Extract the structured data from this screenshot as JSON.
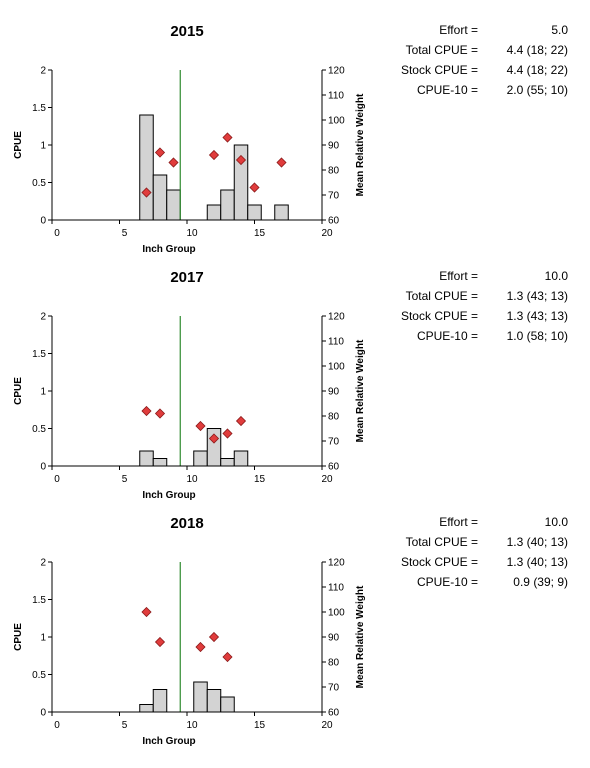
{
  "chart_data": [
    {
      "type": "bar",
      "title": "2015",
      "xlabel": "Inch Group",
      "ylabel": "CPUE",
      "y2label": "Mean Relative Weight",
      "xlim": [
        0,
        20
      ],
      "ylim": [
        0,
        2
      ],
      "y2lim": [
        60,
        120
      ],
      "xticks": [
        "0",
        "5",
        "10",
        "15",
        "20"
      ],
      "yticks": [
        "0",
        "0.5",
        "1",
        "1.5",
        "2"
      ],
      "y2ticks": [
        "60",
        "70",
        "80",
        "90",
        "100",
        "110",
        "120"
      ],
      "reference_line_x": 9.5,
      "bars": {
        "x": [
          7,
          8,
          9,
          12,
          13,
          14,
          15,
          17
        ],
        "values": [
          1.4,
          0.6,
          0.4,
          0.2,
          0.4,
          1.0,
          0.2,
          0.2
        ]
      },
      "weights": {
        "x": [
          7,
          8,
          9,
          12,
          13,
          14,
          15,
          17
        ],
        "values": [
          71,
          87,
          83,
          86,
          93,
          84,
          73,
          83
        ]
      },
      "stats": [
        {
          "label": "Effort =",
          "value": "5.0"
        },
        {
          "label": "Total CPUE =",
          "value": "4.4 (18; 22)"
        },
        {
          "label": "Stock CPUE =",
          "value": "4.4 (18; 22)"
        },
        {
          "label": "CPUE-10 =",
          "value": "2.0 (55; 10)"
        }
      ]
    },
    {
      "type": "bar",
      "title": "2017",
      "xlabel": "Inch Group",
      "ylabel": "CPUE",
      "y2label": "Mean Relative Weight",
      "xlim": [
        0,
        20
      ],
      "ylim": [
        0,
        2
      ],
      "y2lim": [
        60,
        120
      ],
      "xticks": [
        "0",
        "5",
        "10",
        "15",
        "20"
      ],
      "yticks": [
        "0",
        "0.5",
        "1",
        "1.5",
        "2"
      ],
      "y2ticks": [
        "60",
        "70",
        "80",
        "90",
        "100",
        "110",
        "120"
      ],
      "reference_line_x": 9.5,
      "bars": {
        "x": [
          7,
          8,
          11,
          12,
          13,
          14
        ],
        "values": [
          0.2,
          0.1,
          0.2,
          0.5,
          0.1,
          0.2
        ]
      },
      "weights": {
        "x": [
          7,
          8,
          11,
          12,
          13,
          14
        ],
        "values": [
          82,
          81,
          76,
          71,
          73,
          78
        ]
      },
      "stats": [
        {
          "label": "Effort =",
          "value": "10.0"
        },
        {
          "label": "Total CPUE =",
          "value": "1.3 (43; 13)"
        },
        {
          "label": "Stock CPUE =",
          "value": "1.3 (43; 13)"
        },
        {
          "label": "CPUE-10 =",
          "value": "1.0 (58; 10)"
        }
      ]
    },
    {
      "type": "bar",
      "title": "2018",
      "xlabel": "Inch Group",
      "ylabel": "CPUE",
      "y2label": "Mean Relative Weight",
      "xlim": [
        0,
        20
      ],
      "ylim": [
        0,
        2
      ],
      "y2lim": [
        60,
        120
      ],
      "xticks": [
        "0",
        "5",
        "10",
        "15",
        "20"
      ],
      "yticks": [
        "0",
        "0.5",
        "1",
        "1.5",
        "2"
      ],
      "y2ticks": [
        "60",
        "70",
        "80",
        "90",
        "100",
        "110",
        "120"
      ],
      "reference_line_x": 9.5,
      "bars": {
        "x": [
          7,
          8,
          11,
          12,
          13
        ],
        "values": [
          0.1,
          0.3,
          0.4,
          0.3,
          0.2
        ]
      },
      "weights": {
        "x": [
          7,
          8,
          11,
          12,
          13
        ],
        "values": [
          100,
          88,
          86,
          90,
          82
        ]
      },
      "stats": [
        {
          "label": "Effort =",
          "value": "10.0"
        },
        {
          "label": "Total CPUE =",
          "value": "1.3 (40; 13)"
        },
        {
          "label": "Stock CPUE =",
          "value": "1.3 (40; 13)"
        },
        {
          "label": "CPUE-10 =",
          "value": "0.9 (39; 9)"
        }
      ]
    }
  ],
  "style": {
    "bar_fill": "#d3d3d3",
    "bar_stroke": "#000000",
    "marker_fill": "#e03c3c",
    "marker_stroke": "#8b1a1a",
    "reference_line_color": "#2e8b2e"
  }
}
